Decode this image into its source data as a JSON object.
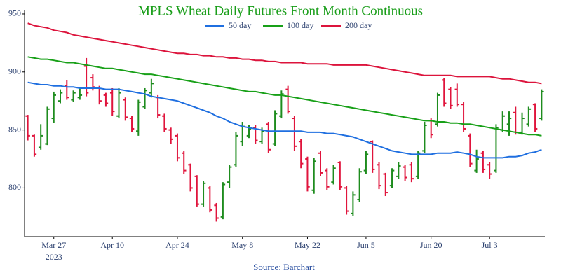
{
  "chart_data": {
    "type": "ohlc",
    "title": "MPLS Wheat Daily Futures Front Month Continuous",
    "source": "Source: Barchart",
    "x_axis_year": "2023",
    "x": [
      "2023-03-21",
      "2023-03-22",
      "2023-03-23",
      "2023-03-24",
      "2023-03-27",
      "2023-03-28",
      "2023-03-29",
      "2023-03-30",
      "2023-03-31",
      "2023-04-03",
      "2023-04-04",
      "2023-04-05",
      "2023-04-06",
      "2023-04-10",
      "2023-04-11",
      "2023-04-12",
      "2023-04-13",
      "2023-04-14",
      "2023-04-17",
      "2023-04-18",
      "2023-04-19",
      "2023-04-20",
      "2023-04-21",
      "2023-04-24",
      "2023-04-25",
      "2023-04-26",
      "2023-04-27",
      "2023-04-28",
      "2023-05-01",
      "2023-05-02",
      "2023-05-03",
      "2023-05-04",
      "2023-05-05",
      "2023-05-08",
      "2023-05-09",
      "2023-05-10",
      "2023-05-11",
      "2023-05-12",
      "2023-05-15",
      "2023-05-16",
      "2023-05-17",
      "2023-05-18",
      "2023-05-19",
      "2023-05-22",
      "2023-05-23",
      "2023-05-24",
      "2023-05-25",
      "2023-05-26",
      "2023-05-30",
      "2023-05-31",
      "2023-06-01",
      "2023-06-02",
      "2023-06-05",
      "2023-06-06",
      "2023-06-07",
      "2023-06-08",
      "2023-06-09",
      "2023-06-12",
      "2023-06-13",
      "2023-06-14",
      "2023-06-15",
      "2023-06-16",
      "2023-06-20",
      "2023-06-21",
      "2023-06-22",
      "2023-06-23",
      "2023-06-26",
      "2023-06-27",
      "2023-06-28",
      "2023-06-29",
      "2023-06-30",
      "2023-07-03",
      "2023-07-05",
      "2023-07-06",
      "2023-07-07",
      "2023-07-10",
      "2023-07-11",
      "2023-07-12",
      "2023-07-13",
      "2023-07-14"
    ],
    "open": [
      862,
      845,
      835,
      838,
      860,
      875,
      888,
      876,
      878,
      905,
      895,
      886,
      880,
      882,
      862,
      876,
      860,
      849,
      870,
      882,
      878,
      862,
      850,
      845,
      830,
      820,
      810,
      786,
      800,
      785,
      775,
      805,
      820,
      840,
      845,
      852,
      840,
      855,
      838,
      862,
      885,
      860,
      840,
      825,
      798,
      830,
      815,
      805,
      822,
      800,
      778,
      790,
      815,
      840,
      820,
      812,
      802,
      810,
      818,
      820,
      810,
      832,
      858,
      855,
      893,
      885,
      885,
      872,
      845,
      815,
      830,
      820,
      815,
      850,
      855,
      865,
      848,
      855,
      872,
      860
    ],
    "high": [
      863,
      846,
      855,
      870,
      883,
      885,
      893,
      884,
      886,
      912,
      898,
      888,
      882,
      886,
      886,
      878,
      862,
      876,
      886,
      894,
      880,
      864,
      852,
      847,
      832,
      821,
      811,
      806,
      802,
      787,
      805,
      820,
      848,
      857,
      854,
      854,
      852,
      857,
      867,
      884,
      888,
      862,
      842,
      827,
      826,
      832,
      817,
      820,
      823,
      802,
      797,
      817,
      832,
      841,
      822,
      813,
      817,
      822,
      820,
      822,
      832,
      857,
      860,
      882,
      895,
      887,
      890,
      874,
      847,
      833,
      832,
      822,
      855,
      866,
      866,
      870,
      865,
      870,
      873,
      885
    ],
    "low": [
      841,
      827,
      833,
      837,
      856,
      873,
      876,
      874,
      876,
      879,
      884,
      872,
      870,
      862,
      860,
      858,
      848,
      845,
      868,
      878,
      860,
      848,
      838,
      823,
      812,
      797,
      784,
      784,
      779,
      771,
      773,
      800,
      818,
      836,
      843,
      838,
      838,
      830,
      836,
      860,
      864,
      832,
      817,
      797,
      795,
      810,
      798,
      803,
      798,
      777,
      776,
      788,
      812,
      813,
      799,
      793,
      800,
      808,
      806,
      805,
      808,
      830,
      843,
      853,
      870,
      868,
      870,
      848,
      818,
      813,
      813,
      808,
      813,
      848,
      845,
      846,
      846,
      853,
      848,
      858
    ],
    "close": [
      845,
      829,
      845,
      868,
      880,
      882,
      878,
      882,
      880,
      882,
      887,
      875,
      873,
      866,
      882,
      861,
      851,
      874,
      884,
      890,
      863,
      851,
      842,
      826,
      815,
      800,
      786,
      804,
      781,
      774,
      803,
      818,
      845,
      853,
      851,
      841,
      849,
      833,
      864,
      881,
      866,
      836,
      821,
      801,
      823,
      813,
      801,
      817,
      801,
      780,
      794,
      814,
      829,
      816,
      802,
      796,
      815,
      819,
      809,
      808,
      830,
      854,
      846,
      880,
      873,
      871,
      872,
      851,
      821,
      825,
      816,
      812,
      852,
      862,
      860,
      848,
      860,
      868,
      851,
      883
    ],
    "increasing_color": "#1e8c1e",
    "decreasing_color": "#e0143c",
    "series": [
      {
        "name": "50 day",
        "color": "#1f6fe0",
        "values": [
          891,
          890,
          889,
          889,
          888,
          888,
          887,
          887,
          886,
          886,
          886,
          886,
          885,
          885,
          885,
          884,
          883,
          882,
          881,
          879,
          878,
          877,
          876,
          875,
          873,
          871,
          869,
          867,
          865,
          862,
          860,
          857,
          855,
          853,
          852,
          851,
          850,
          849,
          849,
          849,
          849,
          849,
          849,
          848,
          848,
          848,
          847,
          847,
          846,
          845,
          844,
          842,
          840,
          838,
          836,
          834,
          832,
          831,
          830,
          829,
          829,
          829,
          829,
          830,
          830,
          830,
          831,
          830,
          829,
          827,
          826,
          826,
          826,
          826,
          827,
          827,
          828,
          830,
          831,
          833
        ]
      },
      {
        "name": "100 day",
        "color": "#18a018",
        "values": [
          913,
          912,
          911,
          911,
          910,
          909,
          908,
          908,
          907,
          906,
          905,
          904,
          903,
          903,
          902,
          901,
          900,
          899,
          898,
          898,
          897,
          896,
          895,
          894,
          893,
          892,
          891,
          890,
          889,
          888,
          887,
          886,
          885,
          884,
          883,
          883,
          882,
          881,
          880,
          880,
          879,
          878,
          877,
          876,
          875,
          874,
          873,
          872,
          871,
          870,
          869,
          868,
          867,
          866,
          865,
          864,
          863,
          862,
          861,
          860,
          859,
          858,
          858,
          857,
          857,
          856,
          856,
          855,
          855,
          854,
          853,
          852,
          851,
          850,
          849,
          848,
          847,
          846,
          846,
          845
        ]
      },
      {
        "name": "200 day",
        "color": "#dc143c",
        "values": [
          942,
          940,
          939,
          938,
          936,
          935,
          934,
          932,
          931,
          930,
          929,
          928,
          927,
          926,
          925,
          924,
          923,
          922,
          921,
          920,
          919,
          918,
          917,
          916,
          916,
          915,
          915,
          914,
          914,
          913,
          913,
          912,
          912,
          911,
          911,
          910,
          910,
          909,
          909,
          908,
          908,
          908,
          908,
          907,
          907,
          907,
          907,
          906,
          906,
          906,
          906,
          906,
          906,
          905,
          904,
          903,
          902,
          901,
          900,
          899,
          898,
          897,
          897,
          897,
          897,
          897,
          896,
          896,
          896,
          896,
          896,
          896,
          895,
          894,
          894,
          893,
          892,
          891,
          891,
          890
        ]
      }
    ],
    "ylim": [
      758,
      953
    ],
    "yticks": [
      800,
      850,
      900,
      950
    ],
    "xticks": [
      {
        "value": "2023-03-27",
        "label": "Mar 27"
      },
      {
        "value": "2023-04-10",
        "label": "Apr 10"
      },
      {
        "value": "2023-04-24",
        "label": "Apr 24"
      },
      {
        "value": "2023-05-08",
        "label": "May 8"
      },
      {
        "value": "2023-05-22",
        "label": "May 22"
      },
      {
        "value": "2023-06-05",
        "label": "Jun 5"
      },
      {
        "value": "2023-06-20",
        "label": "Jun 20"
      },
      {
        "value": "2023-07-03",
        "label": "Jul 3"
      }
    ]
  }
}
